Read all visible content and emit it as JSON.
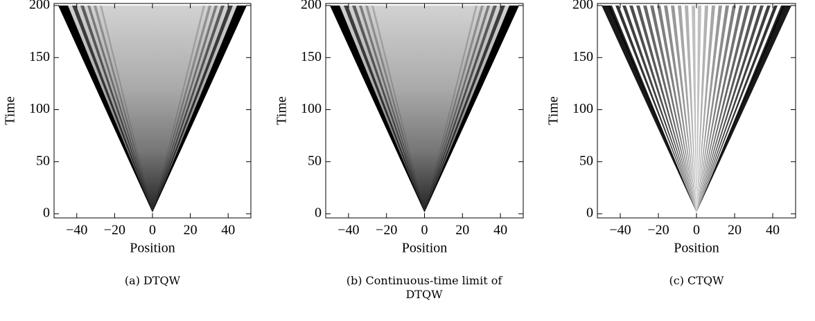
{
  "chart_data": [
    {
      "type": "density",
      "xlabel": "Position",
      "ylabel": "Time",
      "xlim": [
        -52,
        52
      ],
      "ylim": [
        -4,
        202
      ],
      "xticks": [
        {
          "value": -40,
          "label": "−40"
        },
        {
          "value": -20,
          "label": "−20"
        },
        0,
        20,
        40
      ],
      "yticks": [
        0,
        50,
        100,
        150,
        200
      ],
      "caption": "(a) DTQW"
    },
    {
      "type": "density",
      "xlabel": "Position",
      "ylabel": "Time",
      "xlim": [
        -52,
        52
      ],
      "ylim": [
        -4,
        202
      ],
      "xticks": [
        {
          "value": -40,
          "label": "−40"
        },
        {
          "value": -20,
          "label": "−20"
        },
        0,
        20,
        40
      ],
      "yticks": [
        0,
        50,
        100,
        150,
        200
      ],
      "caption": "(b) Continuous-time limit of DTQW"
    },
    {
      "type": "density",
      "xlabel": "Position",
      "ylabel": "Time",
      "xlim": [
        -52,
        52
      ],
      "ylim": [
        -4,
        202
      ],
      "xticks": [
        {
          "value": -40,
          "label": "−40"
        },
        {
          "value": -20,
          "label": "−20"
        },
        0,
        20,
        40
      ],
      "yticks": [
        0,
        50,
        100,
        150,
        200
      ],
      "caption": "(c) CTQW"
    }
  ]
}
